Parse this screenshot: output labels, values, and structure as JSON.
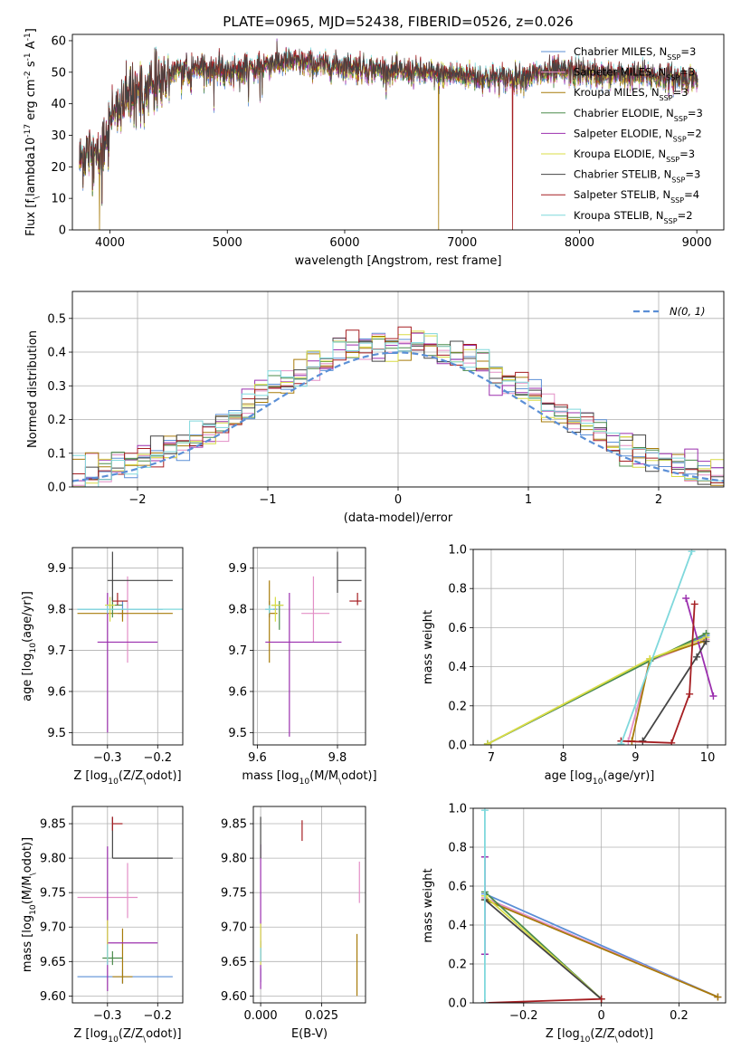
{
  "figure_title": "PLATE=0965, MJD=52438, FIBERID=0526, z=0.026",
  "series": [
    {
      "name": "Chabrier MILES, N$_{SSP}$=3",
      "color": "#5b8fd6"
    },
    {
      "name": "Salpeter MILES, N$_{SSP}$=3",
      "color": "#e38fc6"
    },
    {
      "name": "Kroupa MILES, N$_{SSP}$=3",
      "color": "#a77b0a"
    },
    {
      "name": "Chabrier ELODIE, N$_{SSP}$=3",
      "color": "#4b8b4b"
    },
    {
      "name": "Salpeter ELODIE, N$_{SSP}$=2",
      "color": "#9b2fae"
    },
    {
      "name": "Kroupa ELODIE, N$_{SSP}$=3",
      "color": "#d9dc45"
    },
    {
      "name": "Chabrier STELIB, N$_{SSP}$=3",
      "color": "#444444"
    },
    {
      "name": "Salpeter STELIB, N$_{SSP}$=4",
      "color": "#a51e22"
    },
    {
      "name": "Kroupa STELIB, N$_{SSP}$=2",
      "color": "#7fd8dc"
    }
  ],
  "chart_data": [
    {
      "id": "spectrum",
      "type": "line",
      "xlabel": "wavelength [Angstrom, rest frame]",
      "ylabel": "Flux [f$_\\lambda$10$^{-17}$ erg cm$^{-2}$ s$^{-1}$ A$^{-1}$]",
      "xlim": [
        3680,
        9230
      ],
      "ylim": [
        0,
        62
      ],
      "xticks": [
        4000,
        5000,
        6000,
        7000,
        8000,
        9000
      ],
      "yticks": [
        0,
        10,
        20,
        30,
        40,
        50,
        60
      ],
      "legend_position": "top-right",
      "continuum": {
        "x": [
          3750,
          3800,
          3850,
          3900,
          3950,
          4000,
          4100,
          4200,
          4300,
          4400,
          4500,
          4600,
          4800,
          5000,
          5200,
          5400,
          5600,
          5800,
          6000,
          6200,
          6400,
          6600,
          6800,
          7000,
          7200,
          7400,
          7600,
          7800,
          8000,
          8200,
          8400,
          8600,
          8800,
          9000
        ],
        "y": [
          22,
          25,
          24,
          22,
          28,
          36,
          40,
          42,
          44,
          46,
          49,
          51,
          51,
          50,
          51,
          53,
          53,
          52,
          52,
          51,
          50,
          50,
          49,
          49,
          48,
          48,
          49,
          50,
          50,
          49,
          49,
          49,
          48,
          48
        ]
      },
      "drops": [
        {
          "x": 3910,
          "y": 0,
          "series": 2
        },
        {
          "x": 6800,
          "y": 0,
          "series": 2
        },
        {
          "x": 7430,
          "y": 0,
          "series": 7
        }
      ]
    },
    {
      "id": "residuals",
      "type": "histogram",
      "xlabel": "(data-model)/error",
      "ylabel": "Normed distribution",
      "xlim": [
        -2.5,
        2.5
      ],
      "ylim": [
        0,
        0.58
      ],
      "xticks": [
        -2,
        -1,
        0,
        1,
        2
      ],
      "yticks": [
        0.0,
        0.1,
        0.2,
        0.3,
        0.4,
        0.5
      ],
      "grid": true,
      "bin_width": 0.1,
      "reference": {
        "name": "$\\mathcal{N}(0,1)$",
        "mean": 0,
        "sigma": 1,
        "color": "#5b8fd6"
      }
    },
    {
      "id": "age-vs-Z",
      "type": "errorbar",
      "xlabel": "Z [log$_{10}$(Z/Z$_\\odot$)]",
      "ylabel": "age  [log$_{10}$(age/yr)]",
      "xlim": [
        -0.37,
        -0.15
      ],
      "ylim": [
        9.47,
        9.95
      ],
      "xticks": [
        -0.3,
        -0.2
      ],
      "yticks": [
        9.5,
        9.6,
        9.7,
        9.8,
        9.9
      ],
      "grid": true,
      "points": [
        {
          "s": 0,
          "x": -0.27,
          "y": 9.8,
          "xl": 0.09,
          "xh": 0.08,
          "yl": 0.02,
          "yh": 0.02
        },
        {
          "s": 1,
          "x": -0.26,
          "y": 9.79,
          "xl": 0.02,
          "xh": 0.0,
          "yl": 0.12,
          "yh": 0.09
        },
        {
          "s": 2,
          "x": -0.27,
          "y": 9.79,
          "xl": 0.09,
          "xh": 0.1,
          "yl": 0.02,
          "yh": 0.01
        },
        {
          "s": 3,
          "x": -0.29,
          "y": 9.81,
          "xl": 0.01,
          "xh": 0.02,
          "yl": 0.03,
          "yh": 0.02
        },
        {
          "s": 4,
          "x": -0.3,
          "y": 9.72,
          "xl": 0.02,
          "xh": 0.1,
          "yl": 0.22,
          "yh": 0.12
        },
        {
          "s": 5,
          "x": -0.295,
          "y": 9.81,
          "xl": 0.01,
          "xh": 0.01,
          "yl": 0.04,
          "yh": 0.02
        },
        {
          "s": 6,
          "x": -0.29,
          "y": 9.87,
          "xl": 0.01,
          "xh": 0.12,
          "yl": 0.05,
          "yh": 0.07
        },
        {
          "s": 7,
          "x": -0.28,
          "y": 9.82,
          "xl": 0.01,
          "xh": 0.02,
          "yl": 0.01,
          "yh": 0.02
        },
        {
          "s": 8,
          "x": -0.3,
          "y": 9.8,
          "xl": 0.06,
          "xh": 0.15,
          "yl": 0.01,
          "yh": 0.01
        }
      ]
    },
    {
      "id": "age-vs-mass",
      "type": "errorbar",
      "xlabel": "mass [log$_{10}$(M/M$_\\odot$)]",
      "ylabel": "",
      "xlim": [
        9.59,
        9.87
      ],
      "ylim": [
        9.47,
        9.95
      ],
      "xticks": [
        9.6,
        9.8
      ],
      "yticks": [
        9.5,
        9.6,
        9.7,
        9.8,
        9.9
      ],
      "grid": true,
      "points": [
        {
          "s": 0,
          "x": 9.63,
          "y": 9.8,
          "xl": 0.01,
          "xh": 0.02,
          "yl": 0.02,
          "yh": 0.02
        },
        {
          "s": 1,
          "x": 9.74,
          "y": 9.79,
          "xl": 0.03,
          "xh": 0.04,
          "yl": 0.07,
          "yh": 0.09
        },
        {
          "s": 2,
          "x": 9.63,
          "y": 9.79,
          "xl": 0.0,
          "xh": 0.02,
          "yl": 0.12,
          "yh": 0.08
        },
        {
          "s": 3,
          "x": 9.655,
          "y": 9.81,
          "xl": 0.02,
          "xh": 0.01,
          "yl": 0.06,
          "yh": 0.01
        },
        {
          "s": 4,
          "x": 9.68,
          "y": 9.72,
          "xl": 0.06,
          "xh": 0.13,
          "yl": 0.23,
          "yh": 0.12
        },
        {
          "s": 5,
          "x": 9.645,
          "y": 9.81,
          "xl": 0.01,
          "xh": 0.02,
          "yl": 0.04,
          "yh": 0.02
        },
        {
          "s": 6,
          "x": 9.8,
          "y": 9.87,
          "xl": 0.0,
          "xh": 0.06,
          "yl": 0.03,
          "yh": 0.07
        },
        {
          "s": 7,
          "x": 9.85,
          "y": 9.82,
          "xl": 0.02,
          "xh": 0.01,
          "yl": 0.01,
          "yh": 0.02
        },
        {
          "s": 8,
          "x": 9.63,
          "y": 9.8,
          "xl": 0.01,
          "xh": 0.01,
          "yl": 0.01,
          "yh": 0.01
        }
      ]
    },
    {
      "id": "weight-vs-age",
      "type": "line",
      "xlabel": "age  [log$_{10}$(age/yr)]",
      "ylabel": "mass weight",
      "xlim": [
        6.75,
        10.25
      ],
      "ylim": [
        0,
        1
      ],
      "xticks": [
        7,
        8,
        9,
        10
      ],
      "yticks": [
        0.0,
        0.2,
        0.4,
        0.6,
        0.8,
        1.0
      ],
      "grid": true,
      "lines": [
        {
          "s": 0,
          "x": [
            6.95,
            9.2,
            9.98
          ],
          "y": [
            0.005,
            0.43,
            0.56
          ]
        },
        {
          "s": 1,
          "x": [
            8.9,
            9.2,
            9.98
          ],
          "y": [
            0.02,
            0.43,
            0.54
          ]
        },
        {
          "s": 2,
          "x": [
            8.95,
            9.2,
            9.95
          ],
          "y": [
            0.02,
            0.44,
            0.53
          ]
        },
        {
          "s": 3,
          "x": [
            6.95,
            9.2,
            9.98
          ],
          "y": [
            0.005,
            0.43,
            0.57
          ]
        },
        {
          "s": 4,
          "x": [
            9.7,
            10.08
          ],
          "y": [
            0.75,
            0.25
          ]
        },
        {
          "s": 5,
          "x": [
            6.95,
            9.2,
            9.98
          ],
          "y": [
            0.005,
            0.44,
            0.55
          ]
        },
        {
          "s": 6,
          "x": [
            9.1,
            9.85,
            9.98
          ],
          "y": [
            0.02,
            0.45,
            0.53
          ]
        },
        {
          "s": 7,
          "x": [
            8.8,
            9.5,
            9.75,
            9.82
          ],
          "y": [
            0.02,
            0.01,
            0.26,
            0.72
          ]
        },
        {
          "s": 8,
          "x": [
            8.8,
            9.78
          ],
          "y": [
            0.005,
            0.99
          ]
        }
      ]
    },
    {
      "id": "mass-vs-Z",
      "type": "errorbar",
      "xlabel": "Z [log$_{10}$(Z/Z$_\\odot$)]",
      "ylabel": "mass [log$_{10}$(M/M$_\\odot$)]",
      "xlim": [
        -0.37,
        -0.15
      ],
      "ylim": [
        9.59,
        9.875
      ],
      "xticks": [
        -0.3,
        -0.2
      ],
      "yticks": [
        9.6,
        9.65,
        9.7,
        9.75,
        9.8,
        9.85
      ],
      "grid": true,
      "points": [
        {
          "s": 0,
          "x": -0.27,
          "y": 9.628,
          "xl": 0.09,
          "xh": 0.1,
          "yl": 0.01,
          "yh": 0.01
        },
        {
          "s": 1,
          "x": -0.26,
          "y": 9.743,
          "xl": 0.1,
          "xh": 0.02,
          "yl": 0.03,
          "yh": 0.05
        },
        {
          "s": 2,
          "x": -0.27,
          "y": 9.628,
          "xl": 0.02,
          "xh": 0.02,
          "yl": 0.01,
          "yh": 0.07
        },
        {
          "s": 3,
          "x": -0.29,
          "y": 9.655,
          "xl": 0.02,
          "xh": 0.02,
          "yl": 0.01,
          "yh": 0.01
        },
        {
          "s": 4,
          "x": -0.3,
          "y": 9.677,
          "xl": 0.0,
          "xh": 0.1,
          "yl": 0.07,
          "yh": 0.14
        },
        {
          "s": 5,
          "x": -0.3,
          "y": 9.66,
          "xl": 0.0,
          "xh": 0.0,
          "yl": 0.01,
          "yh": 0.05
        },
        {
          "s": 6,
          "x": -0.29,
          "y": 9.8,
          "xl": 0.0,
          "xh": 0.12,
          "yl": 0.0,
          "yh": 0.06
        },
        {
          "s": 7,
          "x": -0.29,
          "y": 9.85,
          "xl": 0.0,
          "xh": 0.02,
          "yl": 0.01,
          "yh": 0.01
        },
        {
          "s": 8,
          "x": -0.3,
          "y": 9.655,
          "xl": 0.0,
          "xh": 0.0,
          "yl": 0.01,
          "yh": 0.02
        }
      ]
    },
    {
      "id": "mass-vs-ebv",
      "type": "errorbar",
      "xlabel": "E(B-V)",
      "ylabel": "",
      "xlim": [
        -0.003,
        0.043
      ],
      "ylim": [
        9.59,
        9.875
      ],
      "xticks": [
        0.0,
        0.025
      ],
      "xticklabels": [
        "0.000",
        "0.025"
      ],
      "yticks": [
        9.6,
        9.65,
        9.7,
        9.75,
        9.8,
        9.85
      ],
      "grid": true,
      "points": [
        {
          "s": 0,
          "x": 0.0,
          "y": 9.63,
          "xl": 0,
          "xh": 0,
          "yl": 0.01,
          "yh": 0.01
        },
        {
          "s": 1,
          "x": 0.0405,
          "y": 9.755,
          "xl": 0,
          "xh": 0,
          "yl": 0.02,
          "yh": 0.04
        },
        {
          "s": 2,
          "x": 0.0395,
          "y": 9.64,
          "xl": 0,
          "xh": 0,
          "yl": 0.04,
          "yh": 0.05
        },
        {
          "s": 3,
          "x": 0.0,
          "y": 9.66,
          "xl": 0,
          "xh": 0,
          "yl": 0.01,
          "yh": 0.02
        },
        {
          "s": 4,
          "x": 0.0,
          "y": 9.7,
          "xl": 0,
          "xh": 0,
          "yl": 0.09,
          "yh": 0.12
        },
        {
          "s": 5,
          "x": 0.0,
          "y": 9.665,
          "xl": 0,
          "xh": 0,
          "yl": 0.02,
          "yh": 0.04
        },
        {
          "s": 6,
          "x": 0.0,
          "y": 9.82,
          "xl": 0,
          "xh": 0,
          "yl": 0.02,
          "yh": 0.04
        },
        {
          "s": 7,
          "x": 0.017,
          "y": 9.84,
          "xl": 0,
          "xh": 0,
          "yl": 0.015,
          "yh": 0.015
        },
        {
          "s": 8,
          "x": 0.0,
          "y": 9.66,
          "xl": 0,
          "xh": 0,
          "yl": 0.01,
          "yh": 0.01
        }
      ]
    },
    {
      "id": "weight-vs-Z",
      "type": "line",
      "xlabel": "Z [log$_{10}$(Z/Z$_\\odot$)]",
      "ylabel": "mass weight",
      "xlim": [
        -0.33,
        0.32
      ],
      "ylim": [
        0,
        1
      ],
      "xticks": [
        -0.2,
        0.0,
        0.2
      ],
      "yticks": [
        0.0,
        0.2,
        0.4,
        0.6,
        0.8,
        1.0
      ],
      "grid": true,
      "lines": [
        {
          "s": 0,
          "x": [
            -0.3,
            0.3
          ],
          "y": [
            0.56,
            0.03
          ]
        },
        {
          "s": 1,
          "x": [
            -0.3,
            0.3
          ],
          "y": [
            0.54,
            0.03
          ]
        },
        {
          "s": 2,
          "x": [
            -0.3,
            0.3
          ],
          "y": [
            0.53,
            0.03
          ]
        },
        {
          "s": 3,
          "x": [
            -0.3,
            0.0
          ],
          "y": [
            0.57,
            0.02
          ]
        },
        {
          "s": 4,
          "x": [
            -0.3,
            -0.3
          ],
          "y": [
            0.75,
            0.25
          ]
        },
        {
          "s": 5,
          "x": [
            -0.3,
            0.0
          ],
          "y": [
            0.55,
            0.02
          ]
        },
        {
          "s": 6,
          "x": [
            -0.3,
            0.0
          ],
          "y": [
            0.53,
            0.02
          ]
        },
        {
          "s": 7,
          "x": [
            -0.3,
            0.0
          ],
          "y": [
            0.0,
            0.02
          ]
        },
        {
          "s": 8,
          "x": [
            -0.3,
            -0.3
          ],
          "y": [
            0.0,
            0.99
          ]
        }
      ]
    }
  ]
}
